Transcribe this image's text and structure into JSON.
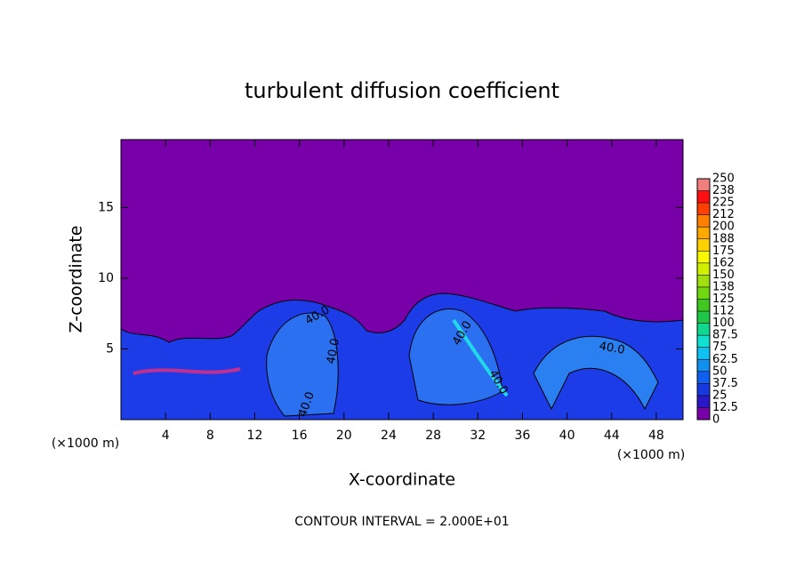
{
  "chart_data": {
    "type": "contour",
    "title": "turbulent diffusion coefficient",
    "x_label": "X-coordinate",
    "y_label": "Z-coordinate",
    "x_unit": "(×1000 m)",
    "x_unit_right": "(×1000 m)",
    "footer": "CONTOUR INTERVAL = 2.000E+01",
    "contour_labels": [
      "40.0",
      "40.0",
      "40.0",
      "40.0",
      "40.0",
      "40.0"
    ],
    "xlim": [
      0,
      50.4
    ],
    "ylim": [
      0,
      19.8
    ],
    "xticks": [
      4,
      8,
      12,
      16,
      20,
      24,
      28,
      32,
      36,
      40,
      44,
      48
    ],
    "yticks": [
      5,
      10,
      15
    ],
    "background_color": "#7800a8",
    "colorbar": {
      "levels": [
        0,
        12.5,
        25,
        37.5,
        50,
        62.5,
        75,
        87.5,
        100,
        112,
        125,
        138,
        150,
        162,
        175,
        188,
        200,
        212,
        225,
        238,
        250
      ],
      "colors": [
        "#7800a8",
        "#2818c8",
        "#1838e0",
        "#1060f0",
        "#1090f0",
        "#10c0f0",
        "#10e0d0",
        "#10d890",
        "#20c848",
        "#40c820",
        "#70d810",
        "#a0e010",
        "#d0f000",
        "#f8f800",
        "#ffd000",
        "#ffa800",
        "#ff8000",
        "#ff4000",
        "#ff1010",
        "#f08080"
      ]
    }
  }
}
